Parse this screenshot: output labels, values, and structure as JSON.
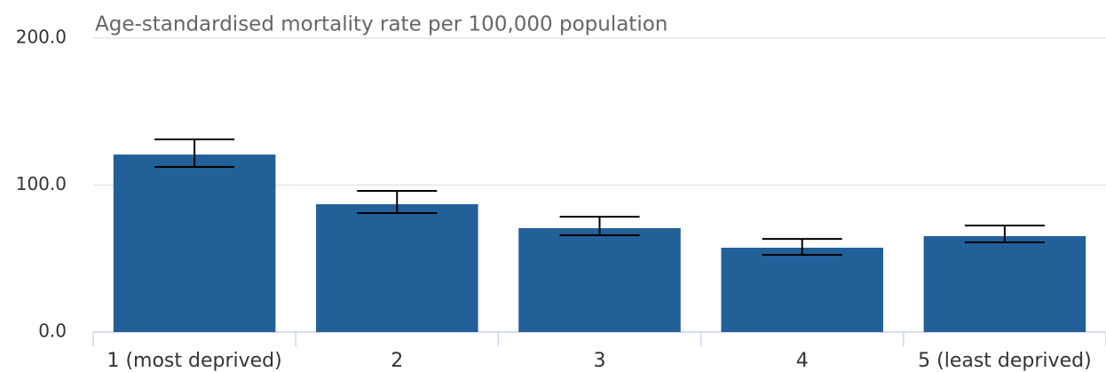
{
  "chart_data": {
    "type": "bar",
    "title": "Age-standardised mortality rate per 100,000 population",
    "categories": [
      "1 (most deprived)",
      "2",
      "3",
      "4",
      "5 (least deprived)"
    ],
    "values": [
      120.8,
      87.0,
      70.7,
      57.4,
      65.3
    ],
    "error_lower": [
      112.4,
      81.0,
      65.9,
      52.6,
      61.0
    ],
    "error_upper": [
      131.1,
      96.1,
      78.5,
      63.4,
      72.5
    ],
    "color": "#22609a",
    "ylim": [
      0,
      200
    ],
    "yticks": [
      {
        "value": 0,
        "label": "0.0"
      },
      {
        "value": 100,
        "label": "100.0"
      },
      {
        "value": 200,
        "label": "200.0"
      }
    ],
    "grid": true
  }
}
